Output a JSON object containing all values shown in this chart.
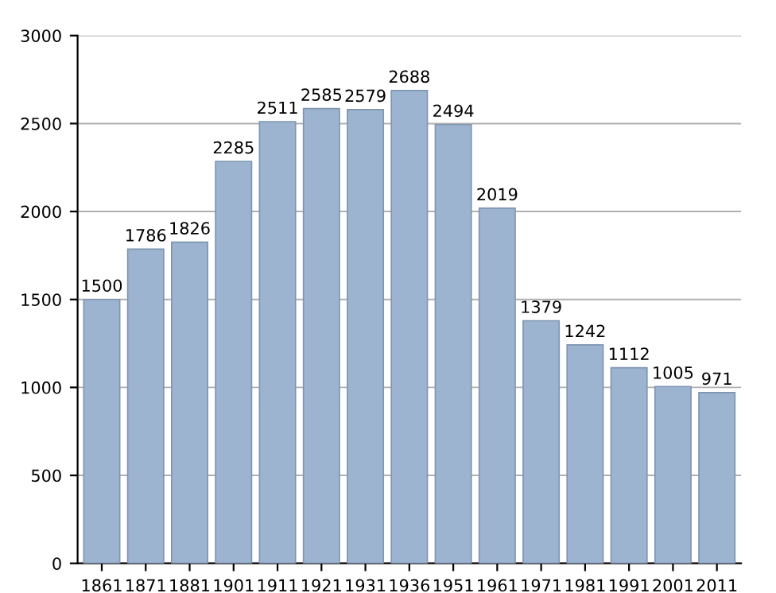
{
  "chart_data": {
    "type": "bar",
    "categories": [
      "1861",
      "1871",
      "1881",
      "1901",
      "1911",
      "1921",
      "1931",
      "1936",
      "1951",
      "1961",
      "1971",
      "1981",
      "1991",
      "2001",
      "2011"
    ],
    "values": [
      1500,
      1786,
      1826,
      2285,
      2511,
      2585,
      2579,
      2688,
      2494,
      2019,
      1379,
      1242,
      1112,
      1005,
      971
    ],
    "color": "#9db4d0",
    "ylim": [
      0,
      3000
    ],
    "yticks": [
      0,
      500,
      1000,
      1500,
      2000,
      2500,
      3000
    ],
    "grid": "y",
    "data_labels": true
  }
}
